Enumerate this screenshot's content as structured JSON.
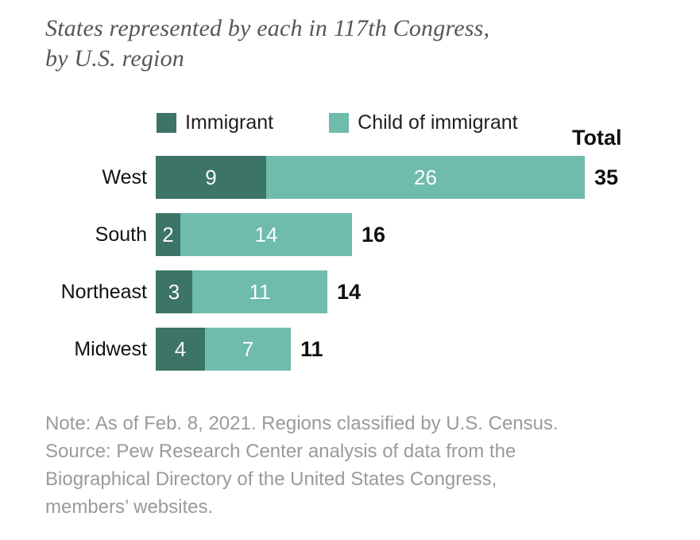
{
  "title": {
    "lines": [
      "States represented by each in 117th Congress,",
      "by U.S. region"
    ]
  },
  "legend": {
    "items": [
      {
        "label": "Immigrant",
        "color": "#3d7468"
      },
      {
        "label": "Child of immigrant",
        "color": "#6fbcad"
      }
    ]
  },
  "total_header": "Total",
  "chart_data": {
    "type": "bar",
    "orientation": "horizontal",
    "stacked": true,
    "categories": [
      "West",
      "South",
      "Northeast",
      "Midwest"
    ],
    "series": [
      {
        "name": "Immigrant",
        "color": "#3d7468",
        "values": [
          9,
          2,
          3,
          4
        ]
      },
      {
        "name": "Child of immigrant",
        "color": "#6fbcad",
        "values": [
          26,
          14,
          11,
          7
        ]
      }
    ],
    "totals": [
      35,
      16,
      14,
      11
    ],
    "x_max": 35,
    "value_labels": "inside, white",
    "axis": "none",
    "legend_position": "top"
  },
  "note": {
    "lines": [
      "Note: As of Feb. 8, 2021. Regions classified by U.S. Census.",
      "Source: Pew Research Center analysis of data from the",
      "Biographical Directory of the United States Congress,",
      "members’ websites."
    ]
  },
  "colors": {
    "immigrant": "#3d7468",
    "child_of_immigrant": "#6fbcad",
    "title_text": "#565658",
    "note_text": "#9a9a9a",
    "label_text": "#111111",
    "bar_value_text": "#ffffff",
    "background": "#ffffff"
  }
}
